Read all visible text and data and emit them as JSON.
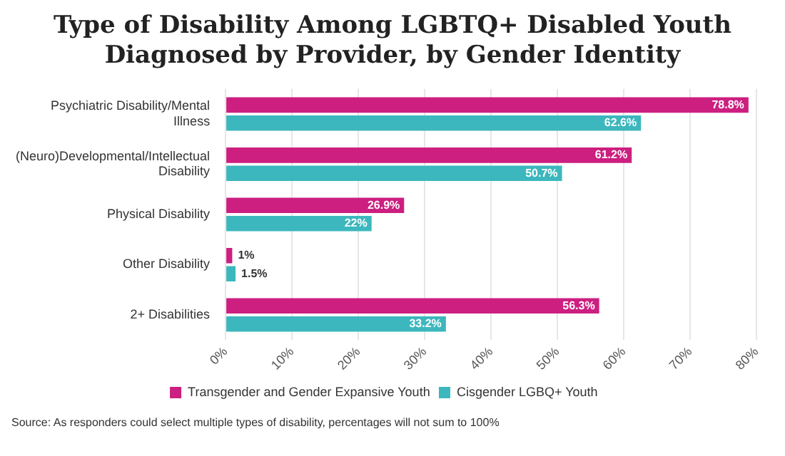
{
  "chart_data": {
    "type": "bar",
    "orientation": "horizontal",
    "title": "Type of Disability Among LGBTQ+ Disabled Youth Diagnosed by Provider, by Gender Identity",
    "categories": [
      "Psychiatric Disability/Mental Illness",
      "(Neuro)Developmental/Intellectual Disability",
      "Physical Disability",
      "Other Disability",
      "2+ Disabilities"
    ],
    "series": [
      {
        "name": "Transgender and Gender Expansive Youth",
        "color": "#cc1f80",
        "values": [
          78.8,
          61.2,
          26.9,
          1,
          56.3
        ],
        "value_labels": [
          "78.8%",
          "61.2%",
          "26.9%",
          "1%",
          "56.3%"
        ]
      },
      {
        "name": "Cisgender LGBQ+ Youth",
        "color": "#3cb7bd",
        "values": [
          62.6,
          50.7,
          22,
          1.5,
          33.2
        ],
        "value_labels": [
          "62.6%",
          "50.7%",
          "22%",
          "1.5%",
          "33.2%"
        ]
      }
    ],
    "xlim": [
      0,
      80
    ],
    "xticks": [
      {
        "value": 0,
        "label": "0%"
      },
      {
        "value": 10,
        "label": "10%"
      },
      {
        "value": 20,
        "label": "20%"
      },
      {
        "value": 30,
        "label": "30%"
      },
      {
        "value": 40,
        "label": "40%"
      },
      {
        "value": 50,
        "label": "50%"
      },
      {
        "value": 60,
        "label": "60%"
      },
      {
        "value": 70,
        "label": "70%"
      },
      {
        "value": 80,
        "label": "80%"
      }
    ],
    "grid": "x",
    "legend": "bottom",
    "annotations": [
      "Source: As responders could select multiple types of disability, percentages will not sum to 100%"
    ]
  }
}
